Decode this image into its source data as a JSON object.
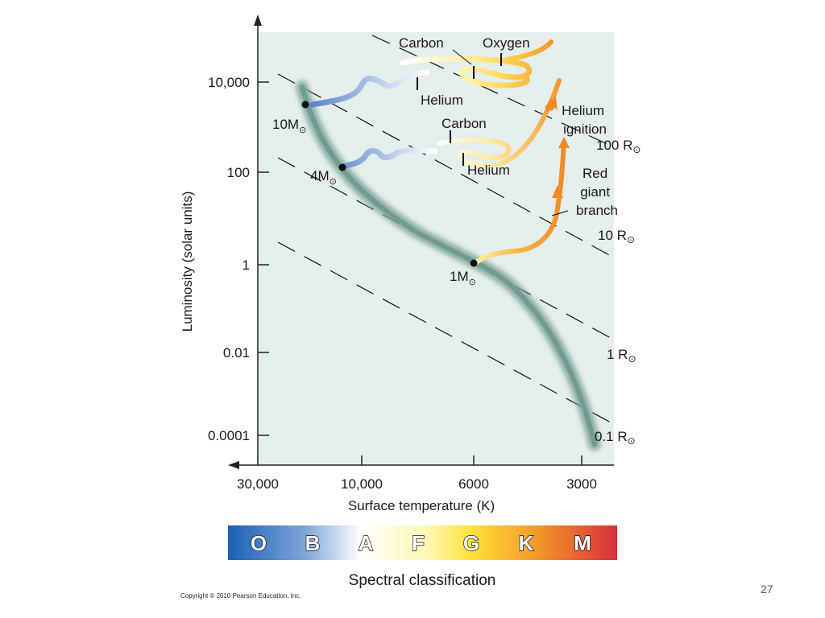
{
  "axes": {
    "y_label": "Luminosity (solar units)",
    "x_label": "Surface temperature (K)",
    "y_ticks": [
      "10,000",
      "100",
      "1",
      "0.01",
      "0.0001"
    ],
    "x_ticks": [
      "30,000",
      "10,000",
      "6000",
      "3000"
    ]
  },
  "radius_lines": [
    {
      "label": "100 R",
      "sym": "⊙"
    },
    {
      "label": "10 R",
      "sym": "⊙"
    },
    {
      "label": "1 R",
      "sym": "⊙"
    },
    {
      "label": "0.1 R",
      "sym": "⊙"
    }
  ],
  "stars": [
    {
      "label": "10M",
      "sym": "⊙"
    },
    {
      "label": "4M",
      "sym": "⊙"
    },
    {
      "label": "1M",
      "sym": "⊙"
    }
  ],
  "annotations": {
    "carbon_top": "Carbon",
    "oxygen": "Oxygen",
    "helium_top": "Helium",
    "carbon_mid": "Carbon",
    "helium_mid": "Helium",
    "helium_ignition": [
      "Helium",
      "ignition"
    ],
    "red_giant": [
      "Red",
      "giant",
      "branch"
    ]
  },
  "spectral": {
    "title": "Spectral classification",
    "classes": [
      "O",
      "B",
      "A",
      "F",
      "G",
      "K",
      "M"
    ]
  },
  "copyright": "Copyright © 2010 Pearson Education, Inc.",
  "page_number": "27"
}
